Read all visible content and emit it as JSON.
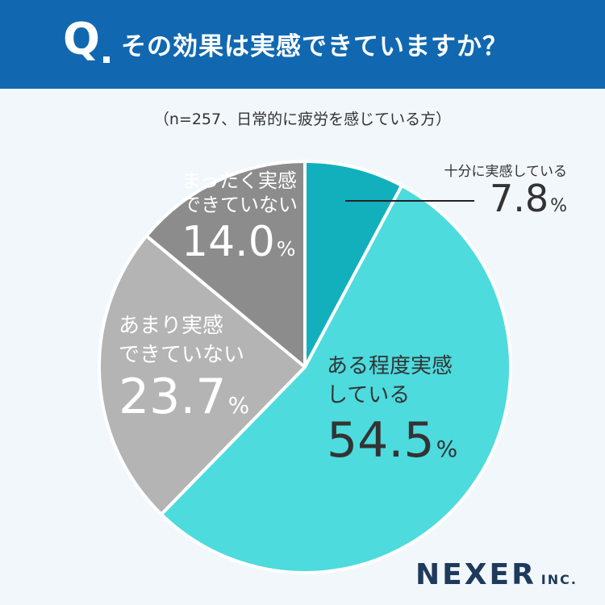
{
  "header": {
    "q_mark": "Q",
    "question": "その効果は実感できていますか？"
  },
  "subtitle": "（n=257、日常的に疲労を感じている方）",
  "logo": {
    "main": "NEXER",
    "sub": "INC."
  },
  "chart_data": {
    "type": "pie",
    "title": "その効果は実感できていますか？",
    "subtitle": "（n=257、日常的に疲労を感じている方）",
    "unit": "%",
    "slices": [
      {
        "label": "十分に実感している",
        "value": 7.8,
        "color": "#12b0bc"
      },
      {
        "label": "ある程度実感している",
        "value": 54.5,
        "color": "#4ddbde"
      },
      {
        "label": "あまり実感できていない",
        "value": 23.7,
        "color": "#b4b4b4"
      },
      {
        "label": "まったく実感できていない",
        "value": 14.0,
        "color": "#8c8c8c"
      }
    ],
    "label_lines": [
      [
        "十分に実感している"
      ],
      [
        "ある程度実感",
        "している"
      ],
      [
        "あまり実感",
        "できていない"
      ],
      [
        "まったく実感",
        "できていない"
      ]
    ],
    "label_colors": [
      "#333333",
      "#333333",
      "#ffffff",
      "#ffffff"
    ]
  }
}
